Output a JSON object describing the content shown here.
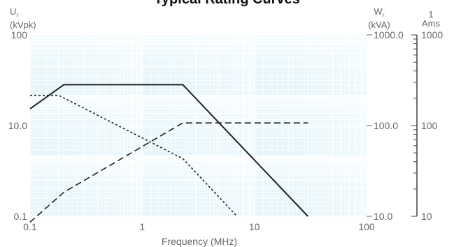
{
  "title": "Typical Rating Curves",
  "left_axis": {
    "unit_symbol": "U",
    "unit_sub": "r",
    "unit": "(kVpk)"
  },
  "right_axis": {
    "unit_symbol": "W",
    "unit_sub": "r",
    "unit": "(kVA)"
  },
  "far_right_axis": {
    "unit_top": "1",
    "unit": "Ams"
  },
  "chart_data": {
    "type": "line",
    "xlabel": "Frequency (MHz)",
    "x_scale": "log",
    "xlim": [
      0.1,
      100
    ],
    "x_ticks": [
      "0.1",
      "1",
      "10",
      "100"
    ],
    "left_ylim": [
      0.1,
      100
    ],
    "left_ticks": [
      "0.1",
      "10.0",
      "100"
    ],
    "right_ticks": [
      "10.0",
      "100.0",
      "1000.0"
    ],
    "far_right_ticks": [
      "10",
      "100",
      "1000"
    ],
    "grid": true,
    "series": [
      {
        "style": "solid",
        "points": [
          [
            0.1,
            6
          ],
          [
            0.2,
            15
          ],
          [
            2.3,
            15
          ],
          [
            30,
            0.1
          ]
        ]
      },
      {
        "style": "dotted",
        "points": [
          [
            0.1,
            10
          ],
          [
            0.18,
            10
          ],
          [
            2.3,
            0.9
          ],
          [
            7,
            0.1
          ]
        ]
      },
      {
        "style": "dashed",
        "points": [
          [
            0.1,
            0.08
          ],
          [
            0.2,
            0.25
          ],
          [
            2.3,
            3.5
          ],
          [
            30,
            3.5
          ]
        ]
      }
    ]
  },
  "colors": {
    "plot_bg": "#e6f6fb",
    "grid": "#ffffff",
    "line": "#222222"
  }
}
